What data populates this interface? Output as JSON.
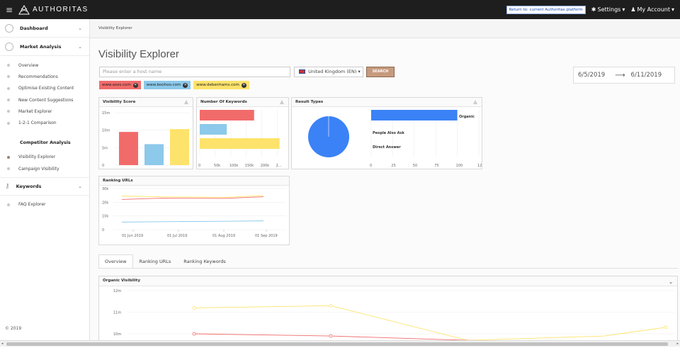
{
  "topbar": {
    "brand": "AUTHORITAS",
    "return_label": "Return to: current Authoritas platform",
    "settings_label": "Settings",
    "account_label": "My Account"
  },
  "sidebar": {
    "dashboard": "Dashboard",
    "market_analysis": "Market Analysis",
    "market_items": [
      "Overview",
      "Recommendations",
      "Optimise Existing Content",
      "New Content Suggestions",
      "Market Explorer",
      "1-2-1 Comparison"
    ],
    "competitor_title": "Competitor Analysis",
    "competitor_items": [
      "Visibility Explorer",
      "Campaign Visibility"
    ],
    "keywords": "Keywords",
    "keyword_items": [
      "FAQ Explorer"
    ],
    "footer": "© 2019"
  },
  "breadcrumb": "Visibility Explorer",
  "page": {
    "title": "Visibility Explorer",
    "host_placeholder": "Please enter a host name",
    "country": "United Kingdom (EN)",
    "search_label": "SEARCH",
    "date_from": "6/5/2019",
    "date_to": "6/11/2019"
  },
  "tags": [
    {
      "label": "www.asos.com",
      "color": "#f26b6b"
    },
    {
      "label": "www.boohoo.com",
      "color": "#8cc9ea"
    },
    {
      "label": "www.debenhams.com",
      "color": "#fde36b"
    }
  ],
  "colors": {
    "red": "#f26b6b",
    "blue": "#8cc9ea",
    "yellow": "#fde36b",
    "pie": "#3b82f6"
  },
  "chart_data": [
    {
      "type": "bar",
      "title": "Visibility Score",
      "categories": [
        "www.asos.com",
        "www.boohoo.com",
        "www.debenhams.com"
      ],
      "values": [
        9.5,
        6.0,
        10.3
      ],
      "yticks": [
        "15m",
        "10m",
        "5m",
        "0"
      ],
      "ylim": [
        0,
        15
      ]
    },
    {
      "type": "bar",
      "orientation": "horizontal",
      "title": "Number Of Keywords",
      "categories": [
        "www.asos.com",
        "www.boohoo.com",
        "www.debenhams.com"
      ],
      "values": [
        175000,
        87000,
        257000
      ],
      "xticks": [
        "0",
        "50k",
        "100k",
        "150k",
        "200k",
        "2..."
      ],
      "xlim": [
        0,
        260000
      ]
    },
    {
      "type": "bar",
      "orientation": "horizontal",
      "title": "Result Types",
      "categories": [
        "Organic",
        "People Also Ask",
        "Direct Answer"
      ],
      "values": [
        100,
        0,
        0
      ],
      "xticks": [
        "0",
        "25",
        "50",
        "75",
        "100",
        "125"
      ],
      "xlim": [
        0,
        125
      ]
    },
    {
      "type": "line",
      "title": "Ranking URLs",
      "x": [
        "01 Jun 2019",
        "01 Jul 2019",
        "01 Aug 2019",
        "01 Sep 2019"
      ],
      "yticks": [
        "30k",
        "20k",
        "10k",
        "0"
      ],
      "ylim": [
        0,
        30000
      ],
      "series": [
        {
          "name": "www.debenhams.com",
          "values": [
            24500,
            24000,
            23500,
            25000
          ]
        },
        {
          "name": "www.asos.com",
          "values": [
            22000,
            23000,
            22800,
            24000
          ]
        },
        {
          "name": "www.boohoo.com",
          "values": [
            5500,
            5800,
            6100,
            6400
          ]
        }
      ]
    },
    {
      "type": "line",
      "title": "Organic Visibility",
      "yticks": [
        "12m",
        "11m",
        "10m"
      ],
      "series": [
        {
          "name": "www.debenhams.com",
          "values": [
            11.2,
            11.3,
            9.7,
            9.9,
            10.3
          ]
        },
        {
          "name": "www.asos.com",
          "values": [
            10.0,
            9.9,
            9.7,
            9.6,
            9.6
          ]
        }
      ]
    }
  ],
  "tabs": [
    "Overview",
    "Ranking URLs",
    "Ranking Keywords"
  ]
}
